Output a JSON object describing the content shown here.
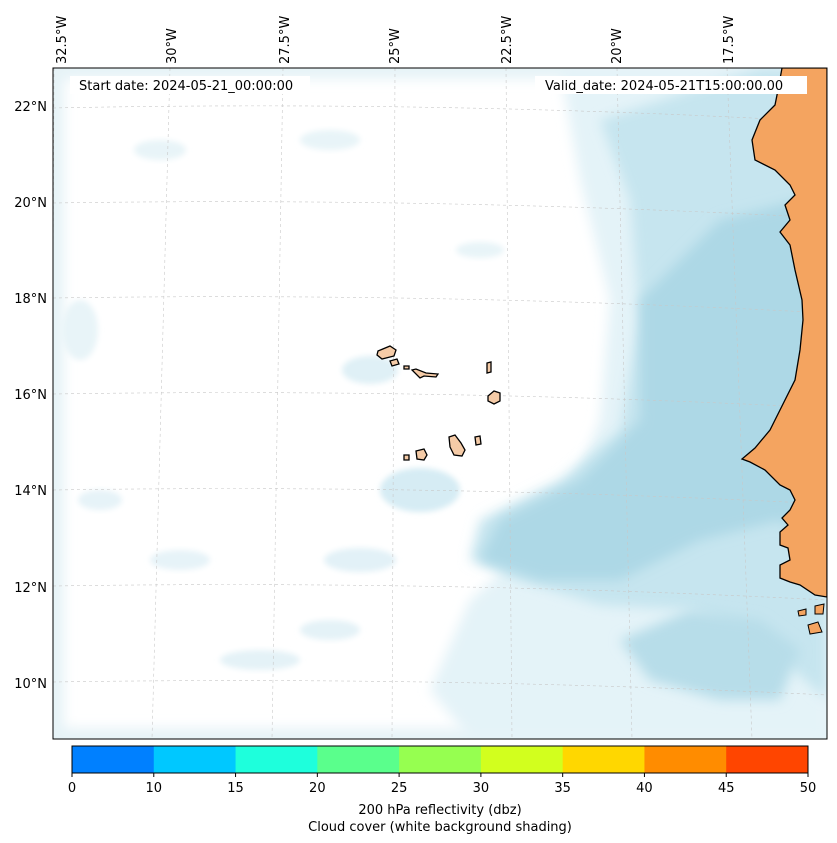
{
  "map": {
    "start_label": "Start date: 2024-05-21_00:00:00",
    "valid_label": "Valid_date: 2024-05-21T15:00:00.00",
    "lon_labels": [
      "32.5°W",
      "30°W",
      "27.5°W",
      "25°W",
      "22.5°W",
      "20°W",
      "17.5°W"
    ],
    "lat_labels": [
      "22°N",
      "20°N",
      "18°N",
      "16°N",
      "14°N",
      "12°N",
      "10°N"
    ],
    "islands": [
      "Santo Antão",
      "São Vicente",
      "Santa Luzia",
      "São Nicolau",
      "Sal",
      "Boa Vista",
      "Brava",
      "Fogo",
      "Santiago",
      "Maio"
    ],
    "colors": {
      "land_mainland": "#f4a460",
      "land_islands": "#f5cba7",
      "cloud_light": "#eaf6f9",
      "cloud_mid": "#cde9f1",
      "cloud_dense": "#add8e6"
    }
  },
  "colorbar": {
    "ticks": [
      "0",
      "10",
      "15",
      "20",
      "25",
      "30",
      "35",
      "40",
      "45",
      "50"
    ],
    "colors": [
      "#0080ff",
      "#00c8ff",
      "#1effdc",
      "#5aff8c",
      "#96ff50",
      "#d2ff1e",
      "#ffd700",
      "#ff8c00",
      "#ff4500"
    ],
    "label_line1": "200 hPa reflectivity (dbz)",
    "label_line2": "Cloud cover (white background shading)"
  }
}
